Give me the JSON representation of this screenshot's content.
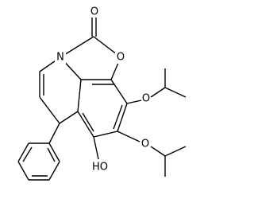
{
  "atoms": {
    "carbonyl_oxygen": "O",
    "ring_nitrogen": "N",
    "ring_oxygen": "O",
    "ether_oxygen_upper": "O",
    "ether_oxygen_lower": "O",
    "hydroxyl": "HO"
  }
}
